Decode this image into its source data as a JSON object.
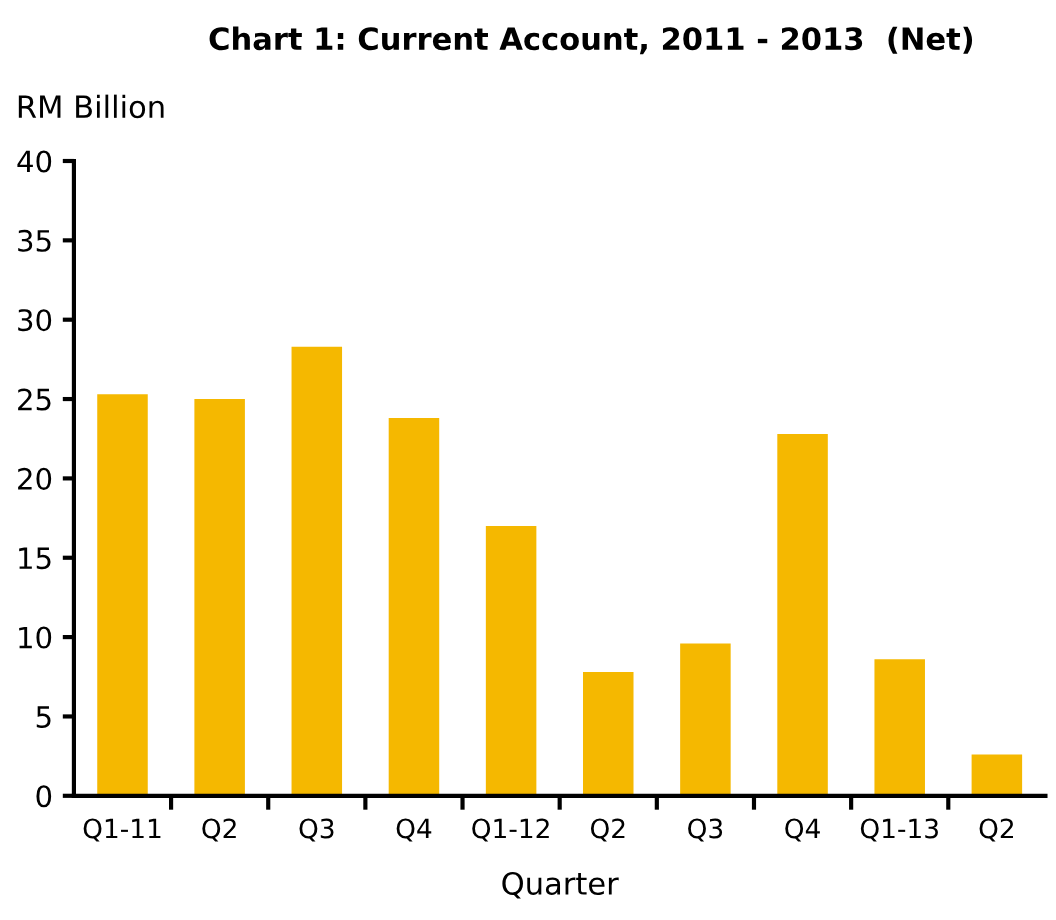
{
  "chart_data": {
    "type": "bar",
    "title": "Chart 1: Current Account, 2011 - 2013  (Net)",
    "ylabel": "RM Billion",
    "xlabel": "Quarter",
    "categories": [
      "Q1-11",
      "Q2",
      "Q3",
      "Q4",
      "Q1-12",
      "Q2",
      "Q3",
      "Q4",
      "Q1-13",
      "Q2"
    ],
    "values": [
      25.3,
      25.0,
      28.3,
      23.8,
      17.0,
      7.8,
      9.6,
      22.8,
      8.6,
      2.6
    ],
    "color": "#f5b800",
    "ylim": [
      0,
      40
    ],
    "yticks": [
      0,
      5,
      10,
      15,
      20,
      25,
      30,
      35,
      40
    ],
    "grid": false,
    "legend": false
  }
}
